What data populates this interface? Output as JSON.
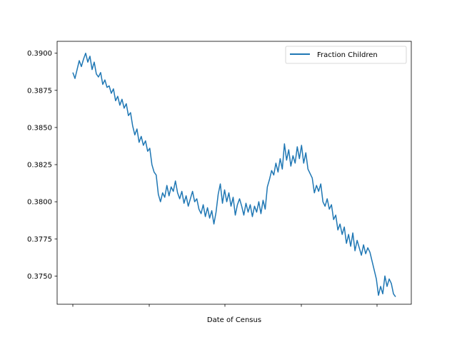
{
  "chart_data": {
    "type": "line",
    "title": "",
    "xlabel": "Date of Census",
    "ylabel": "",
    "ylim": [
      0.3731,
      0.3908
    ],
    "y_ticks": [
      0.375,
      0.3775,
      0.38,
      0.3825,
      0.385,
      0.3875,
      0.39
    ],
    "y_tick_labels": [
      "0.3750",
      "0.3775",
      "0.3800",
      "0.3825",
      "0.3850",
      "0.3875",
      "0.3900"
    ],
    "x_tick_count": 5,
    "x_tick_labels": [
      "",
      "",
      "",
      "",
      ""
    ],
    "grid": false,
    "legend_position": "top-right",
    "series": [
      {
        "name": "Fraction Children",
        "color": "#1f77b4",
        "values": [
          0.3887,
          0.3883,
          0.3889,
          0.3895,
          0.3891,
          0.3896,
          0.39,
          0.3894,
          0.3898,
          0.3889,
          0.3894,
          0.3886,
          0.3884,
          0.3887,
          0.3879,
          0.3882,
          0.3877,
          0.3878,
          0.3873,
          0.3876,
          0.3868,
          0.3871,
          0.3865,
          0.3869,
          0.3863,
          0.3866,
          0.3858,
          0.386,
          0.3851,
          0.3845,
          0.3849,
          0.384,
          0.3844,
          0.3838,
          0.3841,
          0.3834,
          0.3836,
          0.3825,
          0.382,
          0.3818,
          0.3805,
          0.38,
          0.3806,
          0.3803,
          0.3811,
          0.3804,
          0.381,
          0.3807,
          0.3814,
          0.3806,
          0.3802,
          0.3807,
          0.3799,
          0.3804,
          0.3797,
          0.3802,
          0.3807,
          0.38,
          0.3802,
          0.3795,
          0.3792,
          0.3798,
          0.379,
          0.3796,
          0.3789,
          0.3794,
          0.3785,
          0.3793,
          0.3805,
          0.3812,
          0.3799,
          0.3808,
          0.38,
          0.3806,
          0.3797,
          0.3803,
          0.3791,
          0.3798,
          0.3802,
          0.3797,
          0.3791,
          0.3799,
          0.3793,
          0.3798,
          0.379,
          0.3797,
          0.3793,
          0.38,
          0.3792,
          0.3801,
          0.3795,
          0.381,
          0.3815,
          0.3821,
          0.3818,
          0.3826,
          0.382,
          0.3829,
          0.3822,
          0.3839,
          0.3828,
          0.3835,
          0.3824,
          0.3831,
          0.3826,
          0.3837,
          0.3829,
          0.3838,
          0.3826,
          0.3833,
          0.3822,
          0.3819,
          0.3816,
          0.3806,
          0.3811,
          0.3807,
          0.3812,
          0.38,
          0.3797,
          0.3802,
          0.3795,
          0.3798,
          0.3788,
          0.3791,
          0.3781,
          0.3785,
          0.3778,
          0.3783,
          0.3772,
          0.3778,
          0.377,
          0.3779,
          0.3767,
          0.3774,
          0.3769,
          0.3764,
          0.3771,
          0.3765,
          0.3769,
          0.3766,
          0.376,
          0.3754,
          0.3748,
          0.3737,
          0.3743,
          0.3738,
          0.375,
          0.3743,
          0.3748,
          0.3745,
          0.3738,
          0.3736
        ]
      }
    ]
  }
}
